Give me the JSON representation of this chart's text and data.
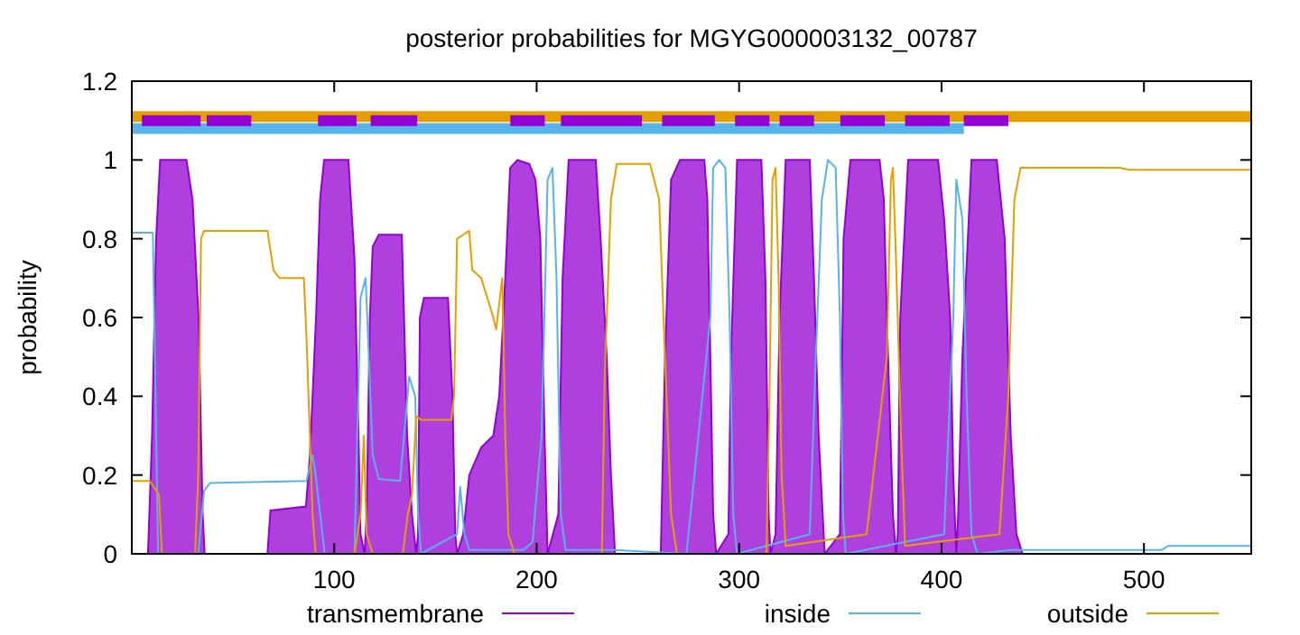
{
  "chart_data": {
    "type": "line",
    "title": "posterior probabilities for MGYG000003132_00787",
    "ylabel": "probability",
    "xlim": [
      0,
      553
    ],
    "ylim": [
      0,
      1.2
    ],
    "xticks": [
      100,
      200,
      300,
      400,
      500
    ],
    "yticks": [
      0,
      0.2,
      0.4,
      0.6,
      0.8,
      1,
      1.2
    ],
    "legend": "bottom",
    "grid": false,
    "series": [
      {
        "name": "transmembrane",
        "type": "area",
        "color": "#9400d3",
        "x": [
          8,
          10,
          12,
          14,
          27,
          30,
          33,
          35,
          36,
          67,
          68.5,
          86,
          88,
          91,
          93,
          95,
          107,
          110,
          112,
          113,
          115,
          116,
          117.6,
          119,
          122,
          133.4,
          134.5,
          136,
          138.4,
          140.5,
          141.4,
          142.3,
          144.3,
          156.2,
          158.4,
          159.8,
          160.7,
          163.7,
          166.7,
          172.6,
          178.6,
          181.5,
          184.5,
          186.9,
          190.5,
          196.4,
          199.4,
          201.8,
          203.9,
          205.4,
          210.7,
          212.8,
          215.8,
          229.2,
          231.6,
          234.6,
          236.7,
          238.7,
          261.3,
          263.4,
          266.4,
          270.8,
          282.8,
          284.3,
          285.8,
          287.2,
          288.7,
          294.7,
          296,
          299,
          311,
          313,
          314.6,
          315.5,
          318,
          320,
          323,
          334.9,
          337,
          339.3,
          342.3,
          349.8,
          351.6,
          355,
          369.4,
          371.5,
          373,
          376,
          377.5,
          378.4,
          379.6,
          383.5,
          398.3,
          401.3,
          404.3,
          405.8,
          407.3,
          408.2,
          410.3,
          414.8,
          427.3,
          431.2,
          434.2,
          437,
          440
        ],
        "values": [
          0,
          0.3,
          0.8,
          1,
          1,
          0.9,
          0.6,
          0.1,
          0,
          0,
          0.11,
          0.12,
          0.25,
          0.6,
          0.9,
          1,
          1,
          0.75,
          0.3,
          0.05,
          0,
          0.1,
          0.6,
          0.78,
          0.81,
          0.81,
          0.6,
          0.3,
          0.1,
          0,
          0.05,
          0.6,
          0.65,
          0.65,
          0.4,
          0.05,
          0,
          0.05,
          0.2,
          0.27,
          0.3,
          0.4,
          0.7,
          0.98,
          1,
          0.99,
          0.95,
          0.8,
          0.3,
          0,
          0.1,
          0.7,
          1,
          1,
          0.8,
          0.5,
          0.2,
          0,
          0,
          0.5,
          0.95,
          1,
          1,
          0.9,
          0.5,
          0.1,
          0,
          0.05,
          0.5,
          1,
          1,
          0.7,
          0.1,
          0,
          0.05,
          0.6,
          1,
          1,
          0.7,
          0.3,
          0,
          0.05,
          0.8,
          1,
          1,
          0.9,
          0.6,
          0.1,
          0,
          0.05,
          0.6,
          1,
          1,
          0.85,
          0.6,
          0.2,
          0,
          0.1,
          0.5,
          1,
          1,
          0.8,
          0.3,
          0.05,
          0
        ]
      },
      {
        "name": "inside",
        "color": "#56b4e9",
        "x": [
          0,
          10.4,
          13,
          32.8,
          35.7,
          38.7,
          86.3,
          89.3,
          90.8,
          95.3,
          110,
          113,
          115.5,
          116.7,
          119,
          122,
          132.5,
          135.4,
          137,
          140,
          141.4,
          142.9,
          160.7,
          162.2,
          164.3,
          166.7,
          193.5,
          198,
          202.4,
          205.4,
          207.8,
          209.8,
          211.9,
          214.3,
          238,
          274,
          285.8,
          287.2,
          290.2,
          293.2,
          295.3,
          297.1,
          299,
          334.9,
          337.9,
          340.9,
          343.9,
          347.7,
          349.8,
          351.3,
          352.7,
          401.3,
          405.8,
          407.3,
          410.3,
          412.4,
          414.8,
          417.8,
          434.5,
          508.9,
          511.9,
          553
        ],
        "values": [
          0.815,
          0.815,
          0,
          0,
          0.16,
          0.18,
          0.185,
          0.25,
          0.2,
          0,
          0,
          0.65,
          0.7,
          0.55,
          0.25,
          0.19,
          0.185,
          0.35,
          0.45,
          0.4,
          0.1,
          0,
          0.05,
          0.17,
          0.05,
          0.01,
          0.01,
          0.03,
          0.3,
          0.95,
          0.98,
          0.7,
          0.1,
          0.01,
          0.01,
          0,
          0.6,
          0.98,
          1,
          0.98,
          0.6,
          0.1,
          0,
          0.05,
          0.5,
          0.9,
          1,
          0.98,
          0.6,
          0.1,
          0,
          0.05,
          0.6,
          0.95,
          0.85,
          0.4,
          0.05,
          0,
          0.01,
          0.01,
          0.02,
          0.02
        ]
      },
      {
        "name": "outside",
        "color": "#e69f00",
        "x": [
          0,
          8.9,
          13.4,
          14.9,
          31.3,
          32.8,
          34.2,
          35.7,
          67,
          70,
          73,
          85,
          86.3,
          89.3,
          90.8,
          110,
          113,
          114.6,
          116,
          119,
          133.9,
          136.3,
          138.4,
          140.5,
          142.9,
          157.8,
          159.2,
          160.7,
          166.7,
          168.2,
          172.6,
          178.6,
          180,
          183,
          184.5,
          186,
          189,
          232.2,
          233.6,
          236.7,
          239.6,
          256,
          260.5,
          263.4,
          266.4,
          269.3,
          313.5,
          315,
          316.5,
          318,
          319.5,
          321,
          323,
          363,
          373,
          375,
          376,
          377.5,
          380,
          382,
          428.6,
          433,
          436,
          439,
          488,
          492.6,
          553
        ],
        "values": [
          0.185,
          0.185,
          0.15,
          0,
          0,
          0.2,
          0.8,
          0.82,
          0.82,
          0.72,
          0.7,
          0.7,
          0.55,
          0.1,
          0,
          0,
          0.1,
          0.3,
          0.05,
          0,
          0,
          0.1,
          0.15,
          0.35,
          0.34,
          0.34,
          0.4,
          0.8,
          0.82,
          0.72,
          0.7,
          0.6,
          0.57,
          0.7,
          0.3,
          0.05,
          0,
          0,
          0.45,
          0.9,
          0.99,
          0.99,
          0.9,
          0.5,
          0.1,
          0,
          0,
          0.4,
          0.95,
          0.98,
          0.7,
          0.2,
          0.02,
          0.05,
          0.5,
          0.95,
          0.98,
          0.75,
          0.3,
          0.02,
          0.05,
          0.4,
          0.9,
          0.98,
          0.98,
          0.975,
          0.975
        ]
      },
      {
        "color": "#e69f00",
        "x": [
          0,
          553
        ],
        "values": [
          1.11,
          1.11
        ]
      },
      {
        "color": "#56b4e9",
        "x": [
          0,
          411
        ],
        "values": [
          1.08,
          1.08
        ]
      },
      {
        "color": "#9400d3",
        "x": [
          5,
          34
        ],
        "values": [
          1.1,
          1.1
        ]
      },
      {
        "color": "#9400d3",
        "x": [
          37,
          59
        ],
        "values": [
          1.1,
          1.1
        ]
      },
      {
        "color": "#9400d3",
        "x": [
          92,
          111
        ],
        "values": [
          1.1,
          1.1
        ]
      },
      {
        "color": "#9400d3",
        "x": [
          118,
          141
        ],
        "values": [
          1.1,
          1.1
        ]
      },
      {
        "color": "#9400d3",
        "x": [
          187,
          204
        ],
        "values": [
          1.1,
          1.1
        ]
      },
      {
        "color": "#9400d3",
        "x": [
          212,
          252
        ],
        "values": [
          1.1,
          1.1
        ]
      },
      {
        "color": "#9400d3",
        "x": [
          262,
          288
        ],
        "values": [
          1.1,
          1.1
        ]
      },
      {
        "color": "#9400d3",
        "x": [
          298,
          315
        ],
        "values": [
          1.1,
          1.1
        ]
      },
      {
        "color": "#9400d3",
        "x": [
          320,
          337
        ],
        "values": [
          1.1,
          1.1
        ]
      },
      {
        "color": "#9400d3",
        "x": [
          350,
          372
        ],
        "values": [
          1.1,
          1.1
        ]
      },
      {
        "color": "#9400d3",
        "x": [
          382,
          404
        ],
        "values": [
          1.1,
          1.1
        ]
      },
      {
        "color": "#9400d3",
        "x": [
          411,
          433
        ],
        "values": [
          1.1,
          1.1
        ]
      }
    ]
  }
}
